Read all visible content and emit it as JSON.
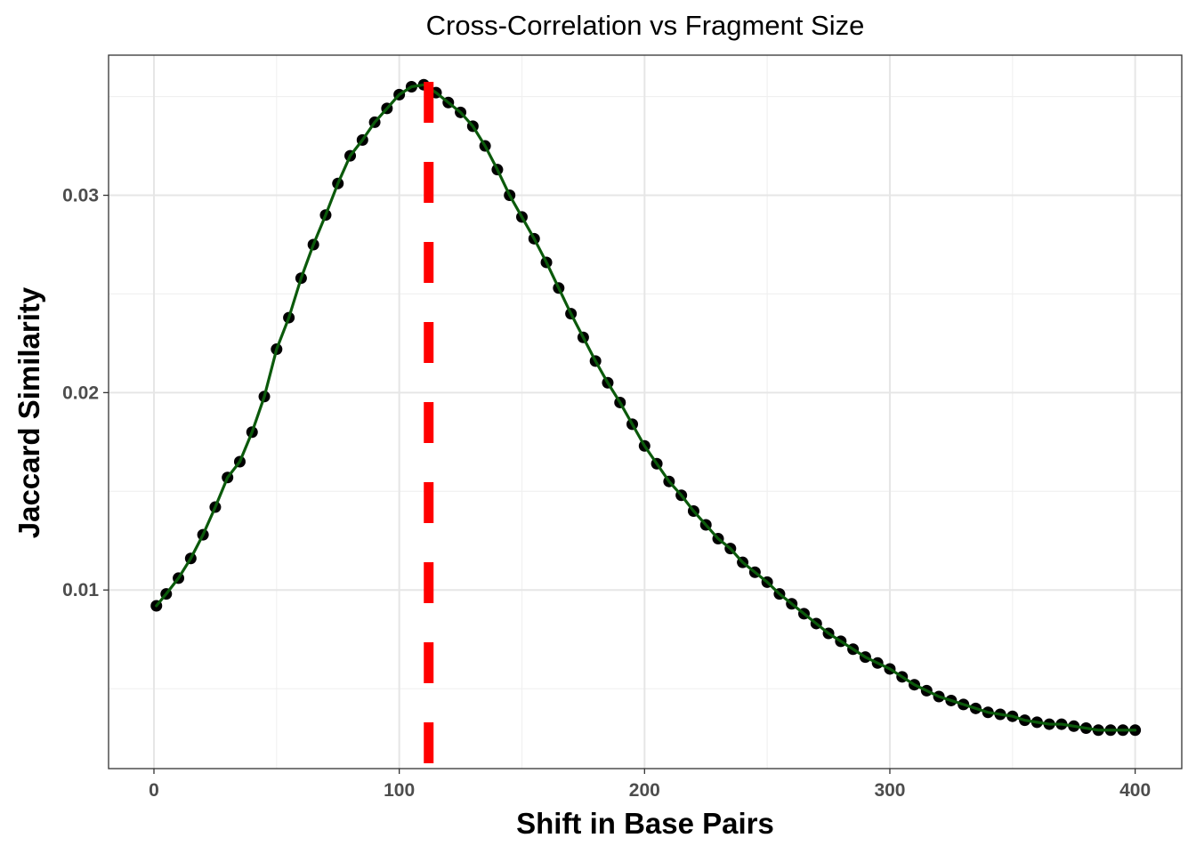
{
  "chart_data": {
    "type": "line",
    "title": "Cross-Correlation vs Fragment Size",
    "xlabel": "Shift in Base Pairs",
    "ylabel": "Jaccard Similarity",
    "xlim": [
      -18.5,
      419
    ],
    "ylim": [
      0.00095,
      0.0371
    ],
    "x_ticks": [
      0,
      100,
      200,
      300,
      400
    ],
    "x_tick_labels": [
      "0",
      "100",
      "200",
      "300",
      "400"
    ],
    "y_ticks": [
      0.01,
      0.02,
      0.03
    ],
    "y_tick_labels": [
      "0.01",
      "0.02",
      "0.03"
    ],
    "grid": true,
    "legend": "none",
    "series": [
      {
        "marker": "point",
        "line_color": "#0b5a0b",
        "marker_color": "#000000",
        "x": [
          1,
          5,
          10,
          15,
          20,
          25,
          30,
          35,
          40,
          45,
          50,
          55,
          60,
          65,
          70,
          75,
          80,
          85,
          90,
          95,
          100,
          105,
          110,
          115,
          120,
          125,
          130,
          135,
          140,
          145,
          150,
          155,
          160,
          165,
          170,
          175,
          180,
          185,
          190,
          195,
          200,
          205,
          210,
          215,
          220,
          225,
          230,
          235,
          240,
          245,
          250,
          255,
          260,
          265,
          270,
          275,
          280,
          285,
          290,
          295,
          300,
          305,
          310,
          315,
          320,
          325,
          330,
          335,
          340,
          345,
          350,
          355,
          360,
          365,
          370,
          375,
          380,
          385,
          390,
          395,
          400
        ],
        "y": [
          0.0092,
          0.0098,
          0.0106,
          0.0116,
          0.0128,
          0.0142,
          0.0157,
          0.0165,
          0.018,
          0.0198,
          0.0222,
          0.0238,
          0.0258,
          0.0275,
          0.029,
          0.0306,
          0.032,
          0.0328,
          0.0337,
          0.0344,
          0.0351,
          0.0355,
          0.0356,
          0.0352,
          0.0347,
          0.0342,
          0.0335,
          0.0325,
          0.0313,
          0.03,
          0.0289,
          0.0278,
          0.0266,
          0.0253,
          0.024,
          0.0228,
          0.0216,
          0.0205,
          0.0195,
          0.0184,
          0.0173,
          0.0164,
          0.0155,
          0.0148,
          0.014,
          0.0133,
          0.0126,
          0.0121,
          0.0114,
          0.0109,
          0.0104,
          0.0098,
          0.0093,
          0.0088,
          0.0083,
          0.0078,
          0.0074,
          0.007,
          0.0066,
          0.0063,
          0.006,
          0.0056,
          0.0052,
          0.0049,
          0.0046,
          0.0044,
          0.0042,
          0.004,
          0.0038,
          0.0037,
          0.0036,
          0.0034,
          0.0033,
          0.0032,
          0.0032,
          0.0031,
          0.003,
          0.0029,
          0.0029,
          0.0029,
          0.0029
        ]
      }
    ],
    "reference_line": {
      "orientation": "vertical",
      "x": 112,
      "style": "dashed",
      "color": "#ff0000"
    }
  }
}
